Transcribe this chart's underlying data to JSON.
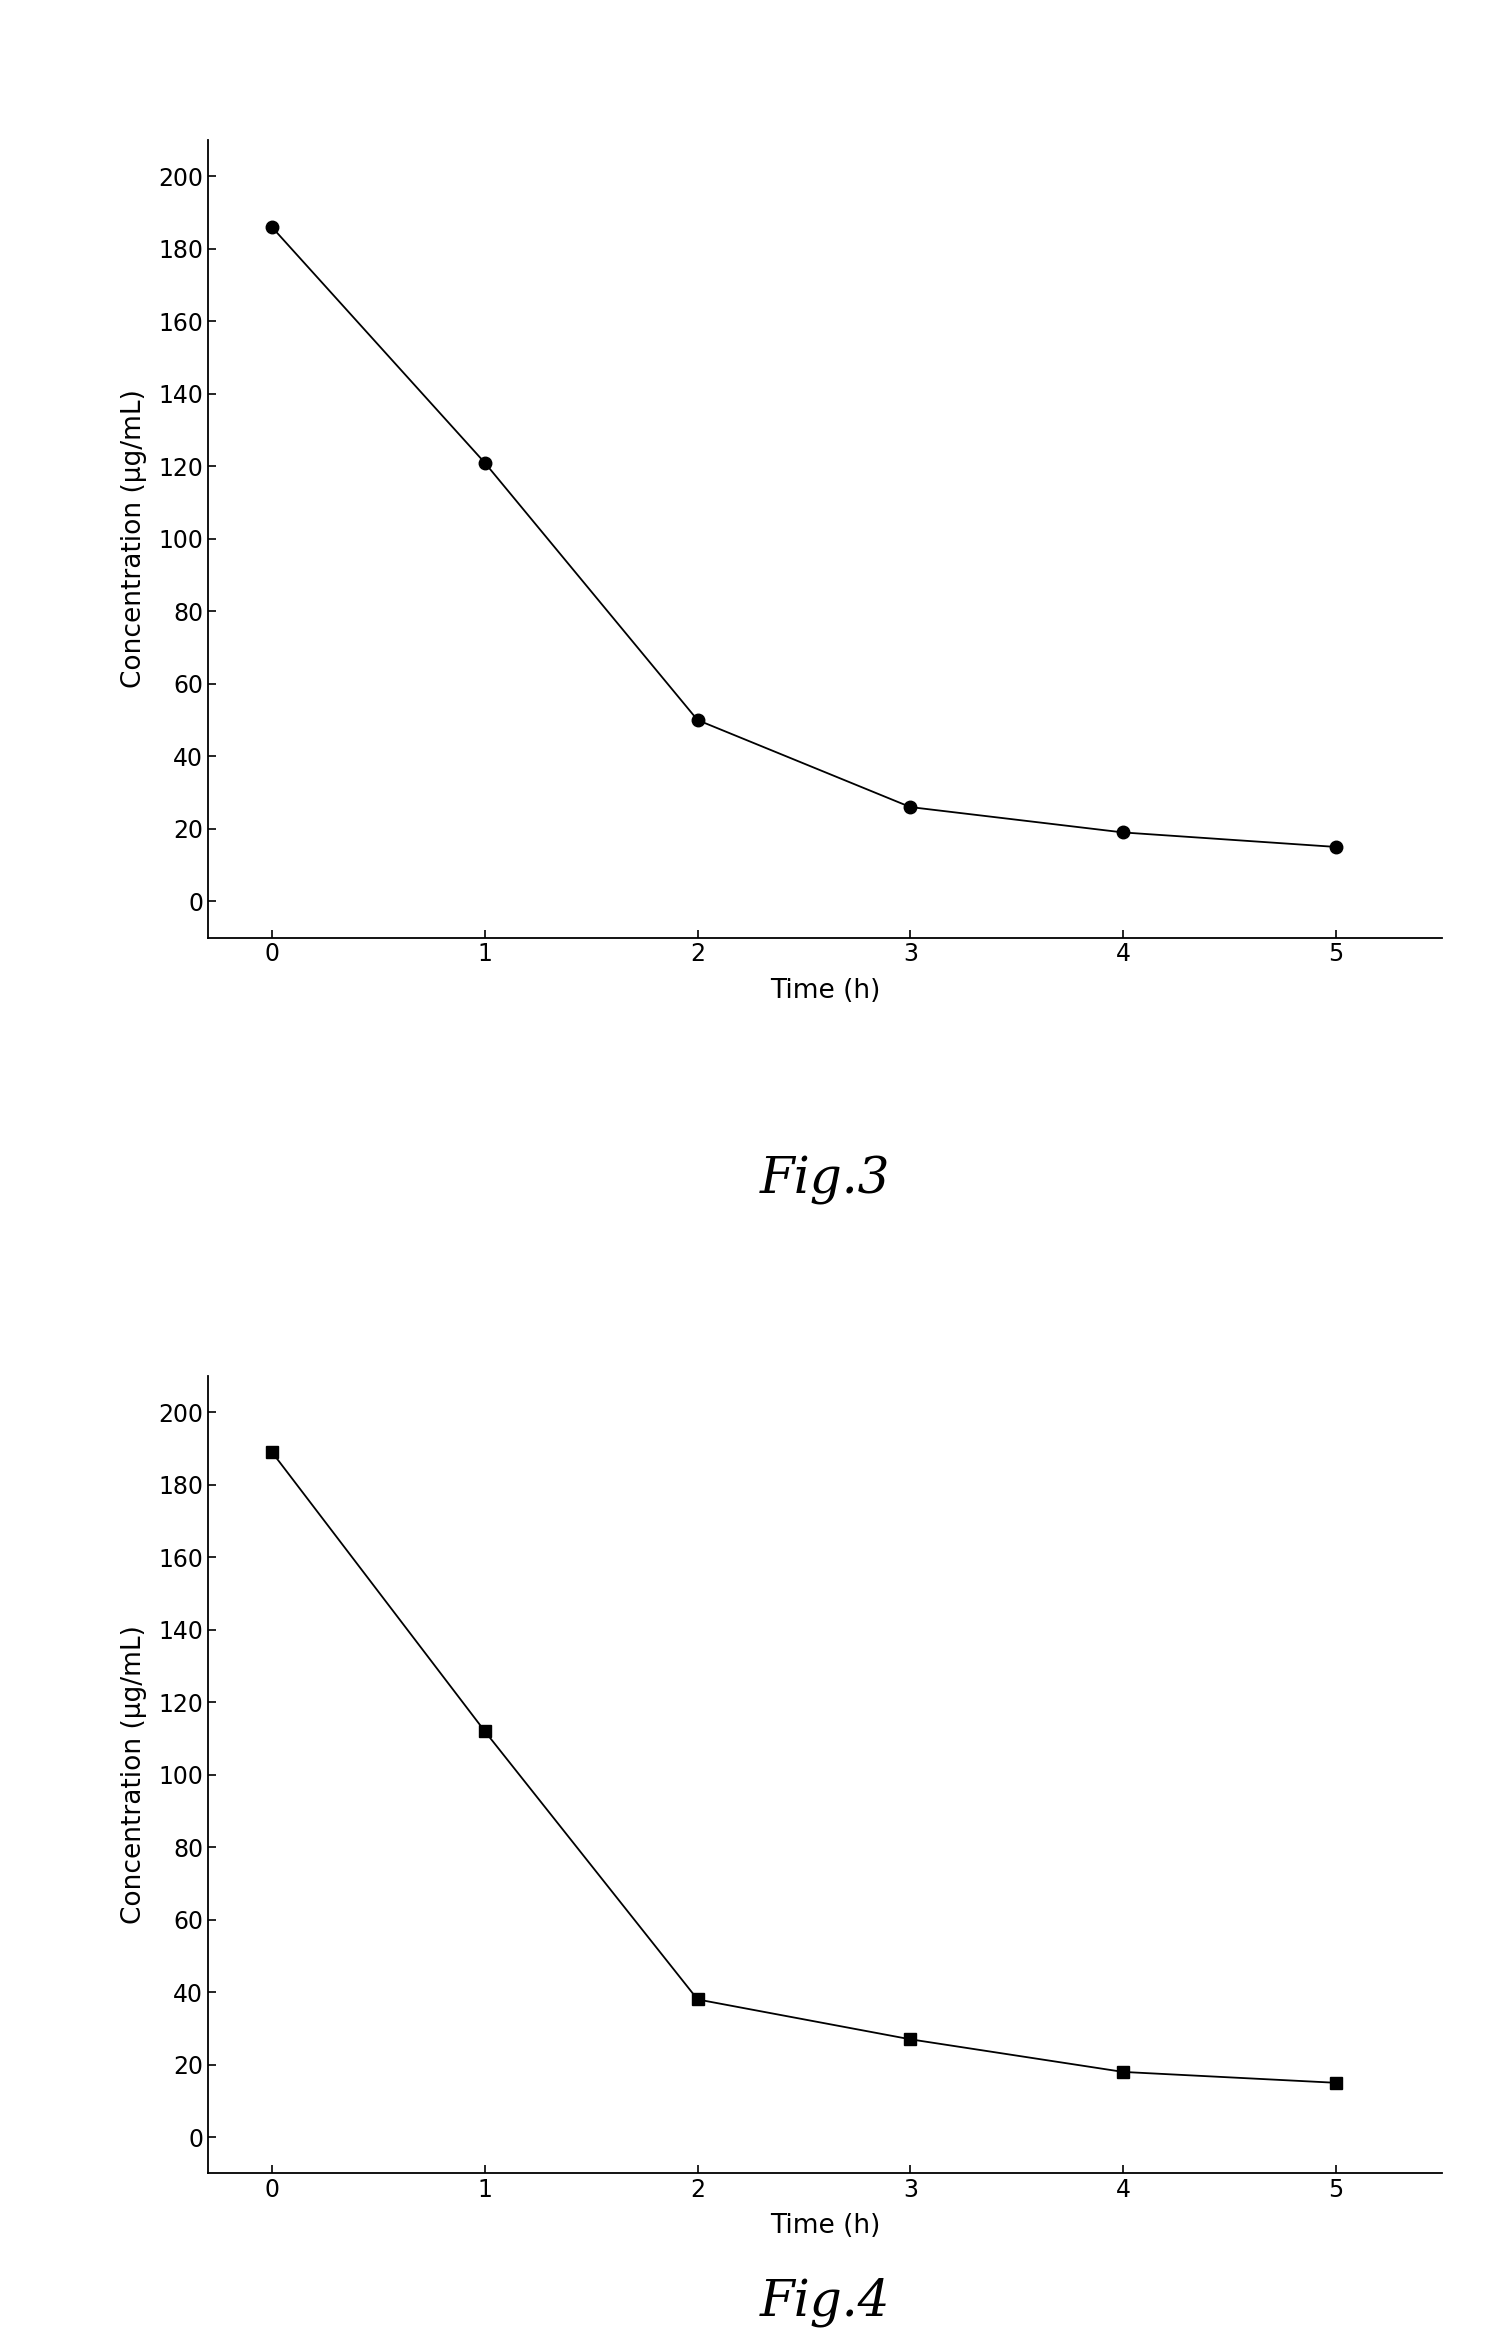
{
  "fig3": {
    "x": [
      0,
      1,
      2,
      3,
      4,
      5
    ],
    "y": [
      186,
      121,
      50,
      26,
      19,
      15
    ],
    "xlabel": "Time (h)",
    "ylabel": "Concentration (μg/mL)",
    "caption": "Fig.3",
    "xlim": [
      -0.3,
      5.5
    ],
    "ylim": [
      -10,
      210
    ],
    "xticks": [
      0,
      1,
      2,
      3,
      4,
      5
    ],
    "yticks": [
      0,
      20,
      40,
      60,
      80,
      100,
      120,
      140,
      160,
      180,
      200
    ]
  },
  "fig4": {
    "x": [
      0,
      1,
      2,
      3,
      4,
      5
    ],
    "y": [
      189,
      112,
      38,
      27,
      18,
      15
    ],
    "xlabel": "Time (h)",
    "ylabel": "Concentration (μg/mL)",
    "caption": "Fig.4",
    "xlim": [
      -0.3,
      5.5
    ],
    "ylim": [
      -10,
      210
    ],
    "xticks": [
      0,
      1,
      2,
      3,
      4,
      5
    ],
    "yticks": [
      0,
      20,
      40,
      60,
      80,
      100,
      120,
      140,
      160,
      180,
      200
    ]
  },
  "background_color": "#ffffff",
  "line_color": "#000000",
  "marker_color": "#000000",
  "marker_style_fig3": "o",
  "marker_style_fig4": "s",
  "marker_size_fig3": 9,
  "marker_size_fig4": 8,
  "line_width": 1.3,
  "caption_fontsize": 36,
  "label_fontsize": 19,
  "tick_fontsize": 17
}
